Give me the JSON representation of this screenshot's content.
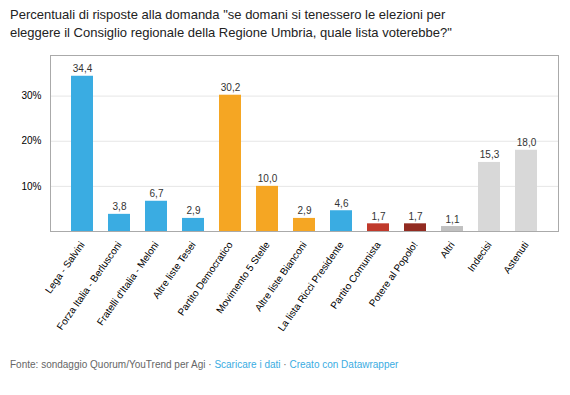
{
  "chart_data": {
    "type": "bar",
    "title": "Percentuali di risposte alla domanda \"se domani si tenessero le elezioni per\neleggere il Consiglio regionale della Regione Umbria, quale lista voterebbe?\"",
    "categories": [
      "Lega - Salvini",
      "Forza Italia - Berlusconi",
      "Fratelli d'Italia - Meloni",
      "Altre liste Tesei",
      "Partito Democratico",
      "Movimento 5 Stelle",
      "Altre liste Bianconi",
      "La lista Ricci Presidente",
      "Partito Comunista",
      "Potere al Popolo!",
      "Altri",
      "Indecisi",
      "Astenuti"
    ],
    "values": [
      34.4,
      3.8,
      6.7,
      2.9,
      30.2,
      10.0,
      2.9,
      4.6,
      1.7,
      1.7,
      1.1,
      15.3,
      18.0
    ],
    "value_labels": [
      "34,4",
      "3,8",
      "6,7",
      "2,9",
      "30,2",
      "10,0",
      "2,9",
      "4,6",
      "1,7",
      "1,7",
      "1,1",
      "15,3",
      "18,0"
    ],
    "colors": [
      "#3AACE2",
      "#3AACE2",
      "#3AACE2",
      "#3AACE2",
      "#F5A623",
      "#F5A623",
      "#F5A623",
      "#3AACE2",
      "#C0392B",
      "#922B21",
      "#C0C0C0",
      "#D8D8D8",
      "#D8D8D8"
    ],
    "ylim": [
      0,
      39
    ],
    "yticks": [
      {
        "value": 0,
        "label": ""
      },
      {
        "value": 10,
        "label": "10%"
      },
      {
        "value": 20,
        "label": "20%"
      },
      {
        "value": 30,
        "label": "30%"
      }
    ],
    "grid": true,
    "data_labels": true,
    "annotations": [
      "Fonte: sondaggio Quorum/YouTrend per Agi · ",
      "Scaricare i dati",
      " · ",
      "Creato con Datawrapper"
    ]
  }
}
